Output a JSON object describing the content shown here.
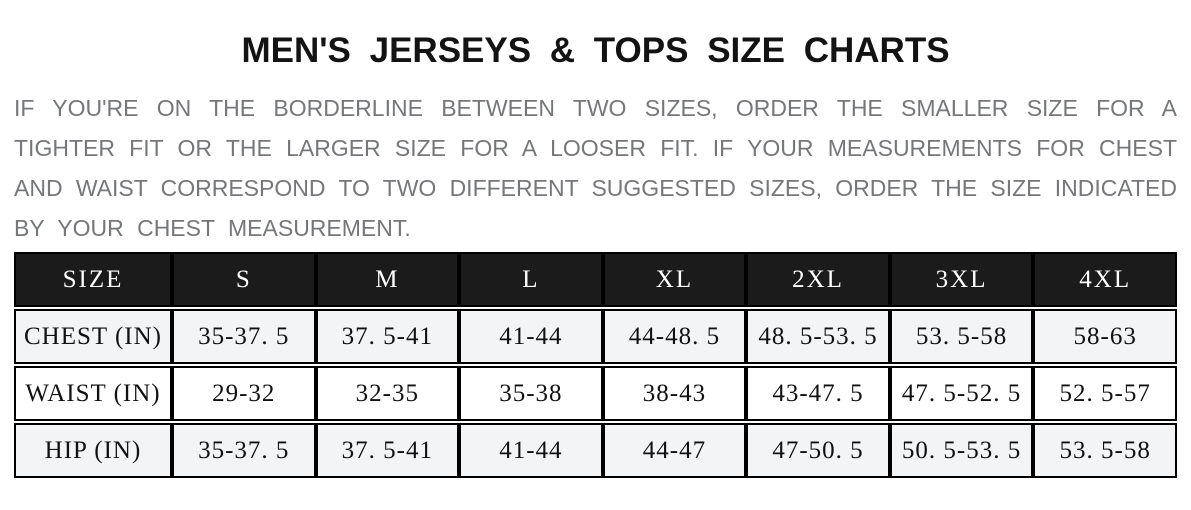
{
  "page": {
    "title": "MEN'S JERSEYS & TOPS SIZE CHARTS"
  },
  "intro": {
    "lines": [
      "IF YOU'RE ON THE BORDERLINE BETWEEN TWO SIZES, ORDER THE SMALLER SIZE FOR A",
      "TIGHTER FIT OR THE LARGER SIZE FOR A LOOSER FIT. IF YOUR MEASUREMENTS FOR CHEST",
      "AND WAIST CORRESPOND TO TWO DIFFERENT SUGGESTED SIZES, ORDER THE SIZE INDICATED",
      "BY YOUR CHEST MEASUREMENT."
    ]
  },
  "size_chart": {
    "columns": [
      "SIZE",
      "S",
      "M",
      "L",
      "XL",
      "2XL",
      "3XL",
      "4XL"
    ],
    "rows": [
      {
        "label": "CHEST (IN)",
        "values": [
          "35-37. 5",
          "37. 5-41",
          "41-44",
          "44-48. 5",
          "48. 5-53. 5",
          "53. 5-58",
          "58-63"
        ]
      },
      {
        "label": "WAIST (IN)",
        "values": [
          "29-32",
          "32-35",
          "35-38",
          "38-43",
          "43-47. 5",
          "47. 5-52. 5",
          "52. 5-57"
        ]
      },
      {
        "label": "HIP (IN)",
        "values": [
          "35-37. 5",
          "37. 5-41",
          "41-44",
          "44-47",
          "47-50. 5",
          "50. 5-53. 5",
          "53. 5-58"
        ]
      }
    ]
  },
  "colors": {
    "header_bg": "#1b1b1b",
    "header_text": "#ffffff",
    "row_shaded_bg": "#f3f4f6",
    "row_plain_bg": "#ffffff",
    "table_border": "#000000",
    "intro_text": "#76777a",
    "title_text": "#131313"
  }
}
